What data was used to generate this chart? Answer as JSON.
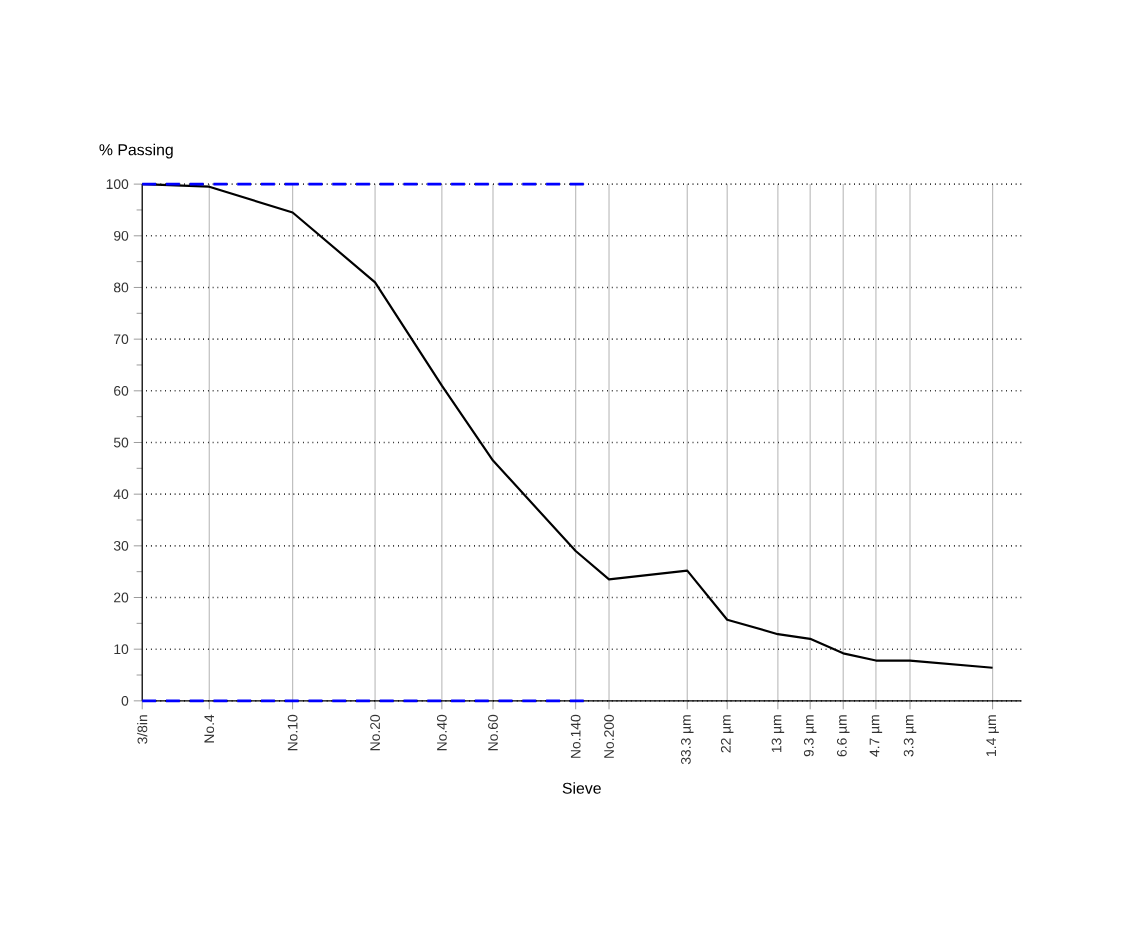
{
  "chart_data": {
    "type": "line",
    "xlabel": "Sieve",
    "ylabel": "% Passing",
    "log": "x",
    "xlim": [
      9525,
      1.04
    ],
    "ylim": [
      0,
      100
    ],
    "xticks": [
      {
        "value": 9525,
        "label": "3/8in"
      },
      {
        "value": 4750,
        "label": "No.4"
      },
      {
        "value": 2000,
        "label": "No.10"
      },
      {
        "value": 850,
        "label": "No.20"
      },
      {
        "value": 425,
        "label": "No.40"
      },
      {
        "value": 250,
        "label": "No.60"
      },
      {
        "value": 106,
        "label": "No.140"
      },
      {
        "value": 75,
        "label": "No.200"
      },
      {
        "value": 33.3,
        "label": "33.3 µm"
      },
      {
        "value": 22,
        "label": "22 µm"
      },
      {
        "value": 13,
        "label": "13 µm"
      },
      {
        "value": 9.3,
        "label": "9.3 µm"
      },
      {
        "value": 6.6,
        "label": "6.6 µm"
      },
      {
        "value": 4.7,
        "label": "4.7 µm"
      },
      {
        "value": 3.3,
        "label": "3.3 µm"
      },
      {
        "value": 1.4,
        "label": "1.4 µm"
      }
    ],
    "yticks": [
      0,
      10,
      20,
      30,
      40,
      50,
      60,
      70,
      80,
      90,
      100
    ],
    "grid": true,
    "series": [
      {
        "color": "#000000",
        "x": [
          9525,
          4750,
          2000,
          850,
          425,
          250,
          106,
          75,
          33.3,
          22,
          13,
          9.3,
          6.6,
          4.7,
          3.3,
          1.4
        ],
        "values": [
          100,
          99.5,
          94.5,
          81,
          61,
          46.5,
          29,
          23.5,
          25.2,
          15.7,
          12.9,
          12,
          9.2,
          7.8,
          7.8,
          6.4
        ]
      },
      {
        "color": "#0000ff",
        "line_style": "dashed",
        "x": [
          9525,
          88
        ],
        "values": [
          100,
          100
        ]
      },
      {
        "color": "#0000ff",
        "line_style": "dashed",
        "x": [
          9525,
          88
        ],
        "values": [
          0,
          0
        ]
      }
    ]
  }
}
